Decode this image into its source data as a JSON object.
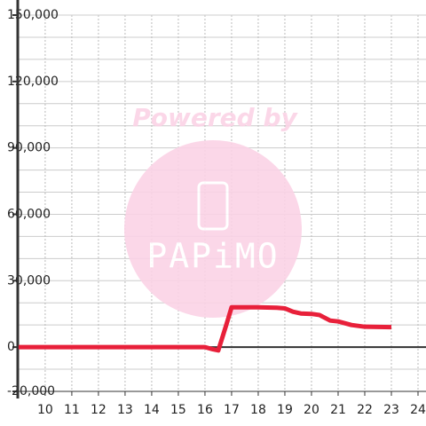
{
  "chart_data": {
    "type": "line",
    "watermark": {
      "title": "Powered by",
      "brand": "PAPiMO"
    },
    "x": [
      9,
      16,
      16.3,
      16.5,
      16.8,
      17,
      18,
      18.7,
      19,
      19.3,
      19.6,
      20,
      20.3,
      20.7,
      21,
      21.5,
      22,
      23
    ],
    "series": [
      {
        "color": "#e8203a",
        "values": [
          0,
          0,
          -1000,
          -1500,
          10000,
          18000,
          18000,
          17800,
          17500,
          16000,
          15200,
          15000,
          14500,
          12000,
          11600,
          10000,
          9200,
          9000
        ]
      }
    ],
    "xlim": [
      8.97,
      24.3
    ],
    "ylim": [
      -20000,
      150000
    ],
    "xticks": [
      10,
      11,
      12,
      13,
      14,
      15,
      16,
      17,
      18,
      19,
      20,
      21,
      22,
      23,
      24
    ],
    "yticks": [
      {
        "value": -20000,
        "label": "-20,000"
      },
      0,
      {
        "value": 30000,
        "label": "30,000"
      },
      {
        "value": 60000,
        "label": "60,000"
      },
      {
        "value": 90000,
        "label": "90,000"
      },
      {
        "value": 120000,
        "label": "120,000"
      },
      {
        "value": 150000,
        "label": "150,000"
      }
    ],
    "ygrid": [
      -10000,
      10000,
      20000,
      40000,
      50000,
      70000,
      80000,
      100000,
      110000,
      130000,
      140000
    ],
    "grid": true
  }
}
